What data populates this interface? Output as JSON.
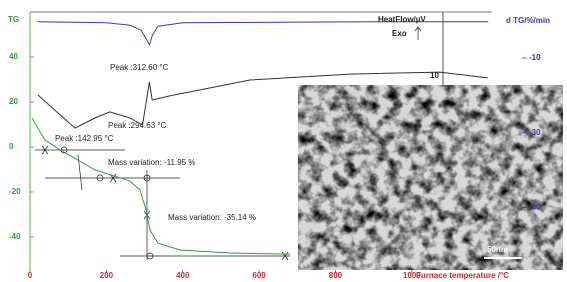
{
  "chart_data": {
    "type": "line",
    "ylabel": "TG",
    "y2label": "d TG/%/min",
    "xlabel": "Furnace temperature /°C",
    "xlim": [
      0,
      1210
    ],
    "xticks": [
      0,
      200,
      400,
      600,
      800,
      1000
    ],
    "ylim": [
      -55,
      60
    ],
    "yticks": [
      40,
      20,
      0,
      -20,
      -40
    ],
    "y2lim": [
      -66.9,
      2.3
    ],
    "y2ticks": [
      -10,
      -30,
      -50
    ],
    "grid": false,
    "series": [
      {
        "color": "#3a3ab0",
        "axis": "y2",
        "x": [
          20,
          200,
          260,
          290,
          305,
          312.6,
          320,
          335,
          400,
          700,
          1000,
          1200
        ],
        "values": [
          -0.3,
          -0.6,
          -1.2,
          -2.5,
          -5,
          -6.5,
          -4,
          -1.5,
          -0.6,
          -0.4,
          -0.3,
          -0.3
        ]
      },
      {
        "color": "#333333",
        "x": [
          21,
          65,
          118,
          170,
          209,
          262,
          294.63,
          312.6,
          320,
          366,
          576,
          838,
          1073,
          1199
        ],
        "values": [
          23.1,
          16.4,
          8.4,
          12.9,
          15.6,
          12.9,
          9.8,
          28.9,
          20.9,
          22.7,
          29.8,
          32.4,
          33.3,
          30.7
        ]
      },
      {
        "color": "#2f9e3a",
        "x": [
          5,
          39,
          79,
          170,
          262,
          288,
          304,
          314,
          335,
          393,
          524,
          681
        ],
        "values": [
          12.9,
          3.1,
          -1.3,
          -10.2,
          -15.1,
          -19.1,
          -28,
          -36.9,
          -42.7,
          -45.8,
          -47.1,
          -47.6
        ]
      }
    ],
    "annotations": [
      "HeatFlow/µV",
      "Exo",
      "10",
      "Peak :312.60 °C",
      "Peak :294.63 °C",
      "Peak :142.95 °C",
      "Mass variation: -11.95 %",
      "Mass variation: -35.14 %",
      "50nm"
    ]
  }
}
